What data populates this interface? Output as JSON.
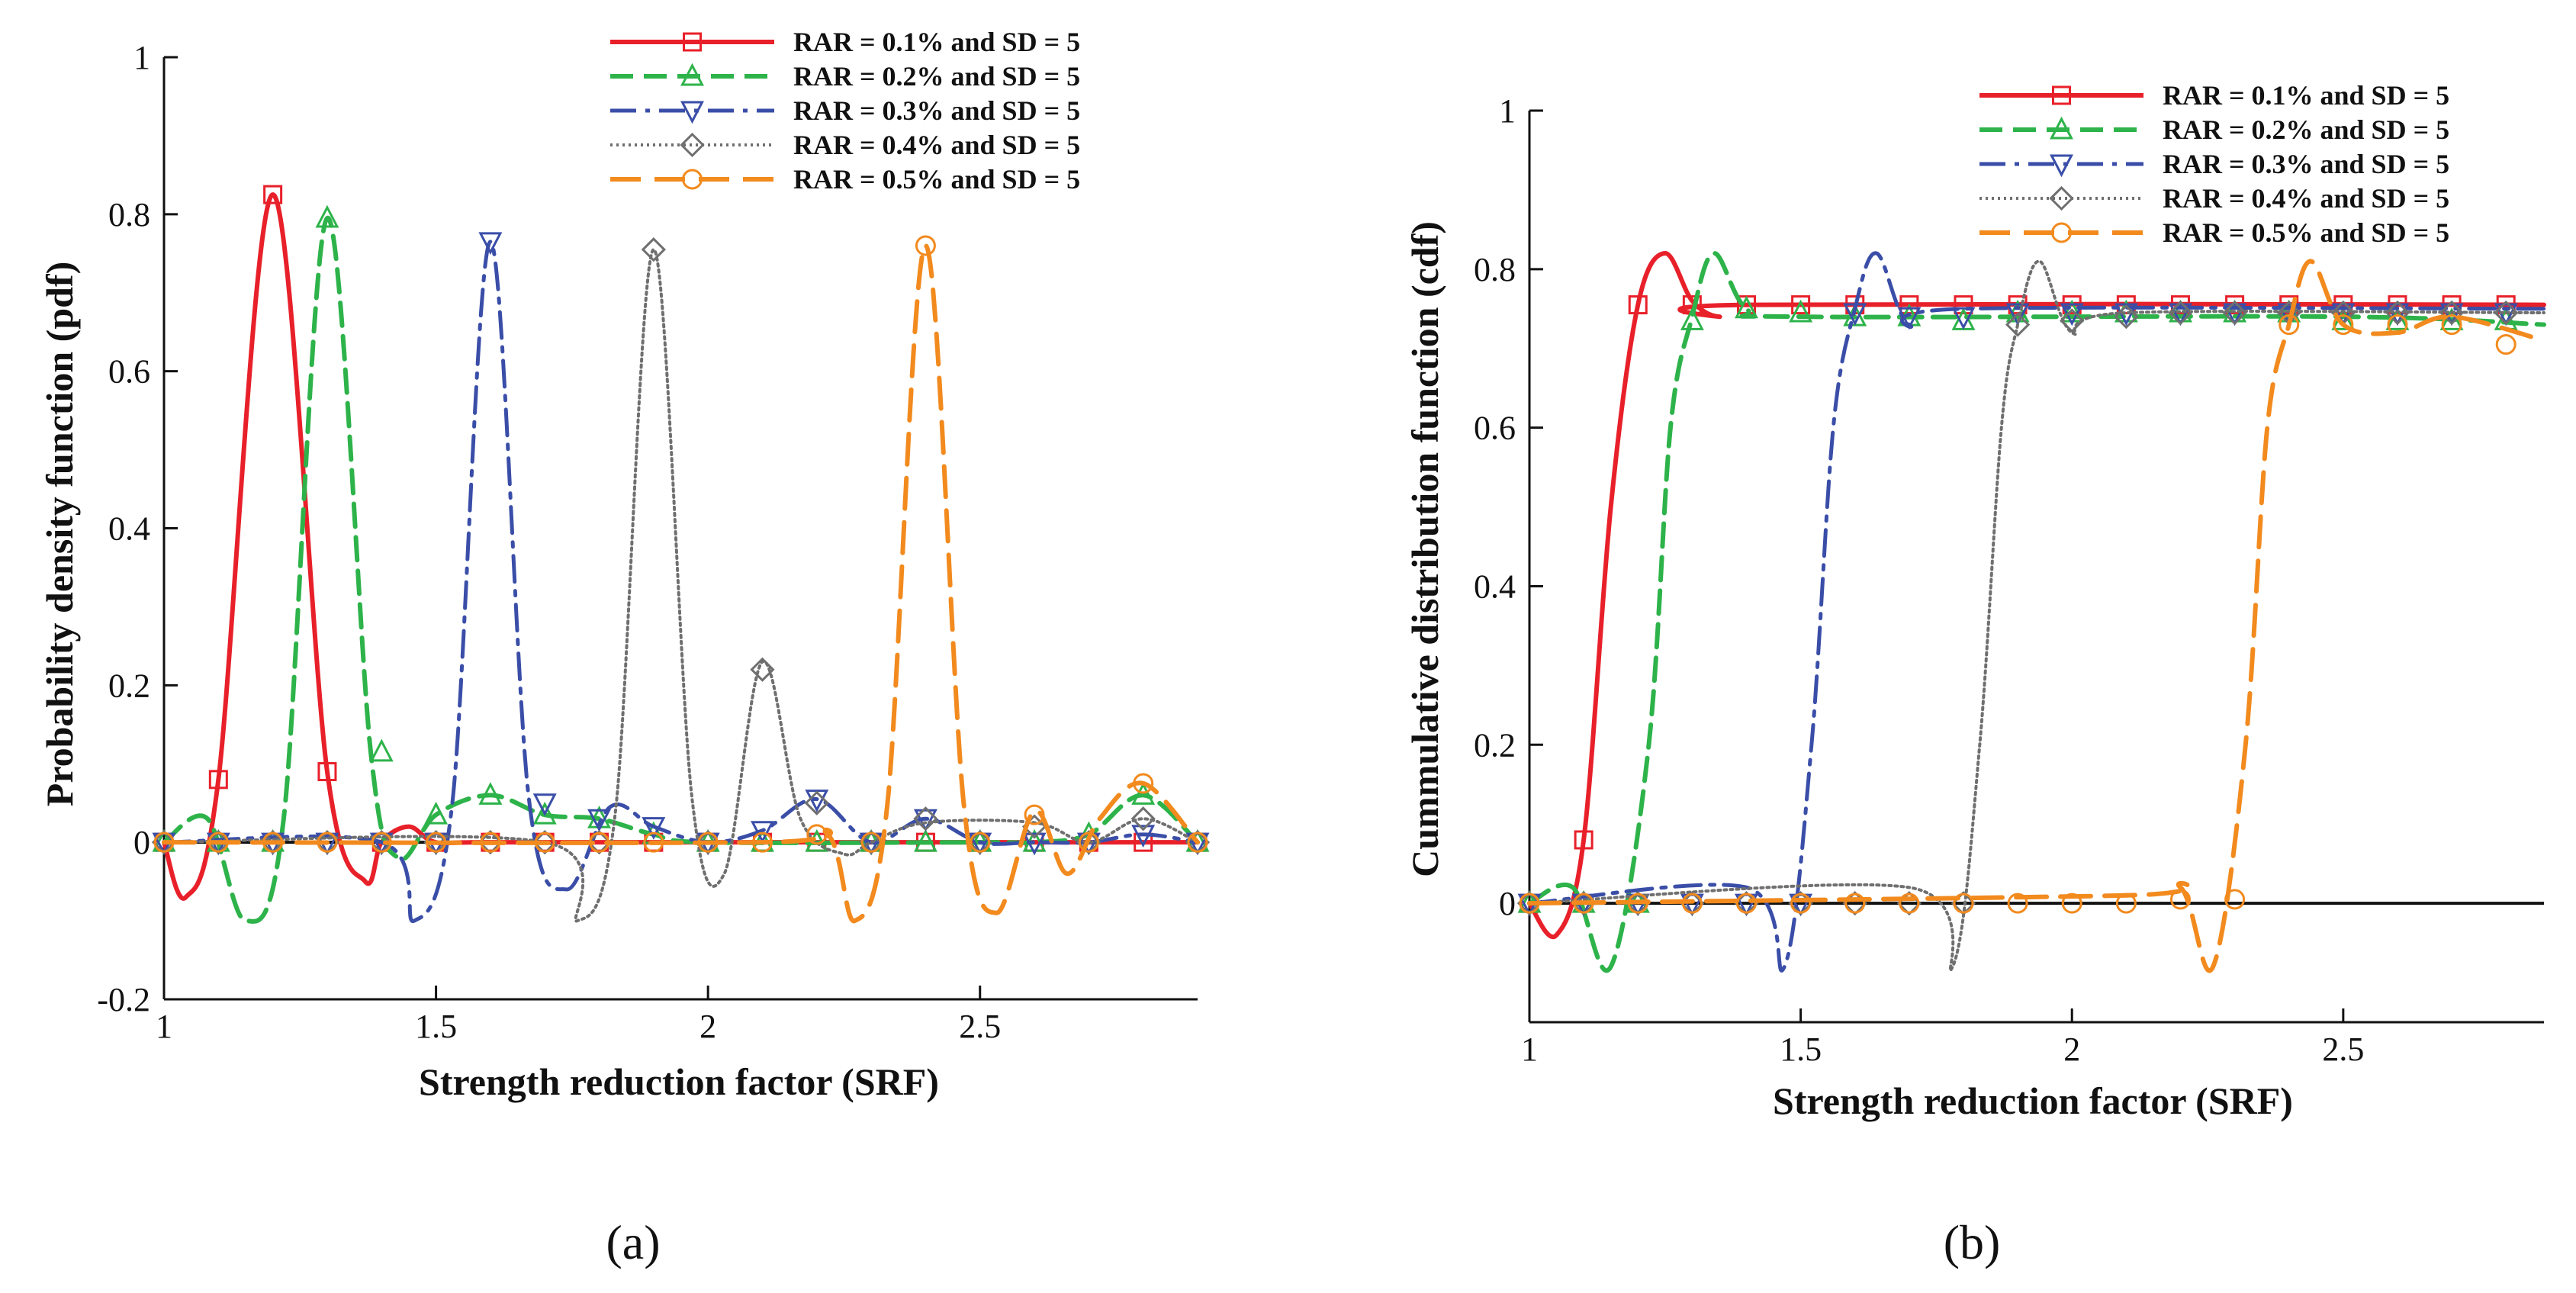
{
  "colors": {
    "s1": "#e8202a",
    "s2": "#2db34a",
    "s3": "#3a4ea8",
    "s4": "#6f6f6f",
    "s5": "#f28a1e"
  },
  "chart_data": [
    {
      "type": "line",
      "caption": "(a)",
      "xlabel": "Strength reduction factor (SRF)",
      "ylabel": "Probability density function (pdf)",
      "xlim": [
        1,
        2.9
      ],
      "ylim": [
        -0.2,
        1
      ],
      "xticks": [
        1,
        1.5,
        2,
        2.5
      ],
      "xtick_labels": [
        "1",
        "1.5",
        "2",
        "2.5"
      ],
      "yticks": [
        -0.2,
        0,
        0.2,
        0.4,
        0.6,
        0.8,
        1
      ],
      "ytick_labels": [
        "-0.2",
        "0",
        "0.2",
        "0.4",
        "0.6",
        "0.8",
        "1"
      ],
      "legend": "top-right",
      "series": [
        {
          "name": "RAR = 0.1% and SD = 5",
          "marker": "square",
          "x": [
            1.0,
            1.04,
            1.1,
            1.2,
            1.3,
            1.37,
            1.4,
            1.45,
            1.5,
            1.6,
            2.2,
            2.4,
            2.6,
            2.8,
            2.9
          ],
          "y": [
            0.0,
            -0.07,
            0.08,
            0.825,
            0.09,
            -0.05,
            0.0,
            0.02,
            0.0,
            0.0,
            0.0,
            0.0,
            0.0,
            0.0,
            0.0
          ],
          "mx": [
            1.0,
            1.1,
            1.2,
            1.3,
            1.4,
            1.5,
            1.6,
            1.7,
            1.8,
            1.9,
            2.0,
            2.1,
            2.2,
            2.3,
            2.4,
            2.5,
            2.6,
            2.7,
            2.8,
            2.9
          ],
          "my": [
            0.0,
            0.08,
            0.825,
            0.09,
            0.0,
            0.0,
            0.0,
            0.0,
            0.0,
            0.0,
            0.0,
            0.0,
            0.0,
            0.0,
            0.0,
            0.0,
            0.0,
            0.0,
            0.0,
            0.0
          ]
        },
        {
          "name": "RAR = 0.2% and SD = 5",
          "marker": "triangle-up",
          "x": [
            1.0,
            1.08,
            1.15,
            1.22,
            1.3,
            1.38,
            1.43,
            1.5,
            1.6,
            1.7,
            1.8,
            1.9,
            2.0,
            2.5,
            2.6,
            2.7,
            2.8,
            2.9
          ],
          "y": [
            0.0,
            0.03,
            -0.1,
            0.03,
            0.795,
            0.115,
            -0.02,
            0.035,
            0.06,
            0.035,
            0.03,
            0.01,
            0.0,
            0.0,
            0.0,
            0.01,
            0.06,
            0.0
          ],
          "mx": [
            1.0,
            1.1,
            1.2,
            1.3,
            1.4,
            1.5,
            1.6,
            1.7,
            1.8,
            1.9,
            2.0,
            2.1,
            2.2,
            2.3,
            2.4,
            2.5,
            2.6,
            2.7,
            2.8,
            2.9
          ],
          "my": [
            0.0,
            0.0,
            0.0,
            0.795,
            0.115,
            0.035,
            0.06,
            0.035,
            0.03,
            0.01,
            0.0,
            0.0,
            0.0,
            0.0,
            0.0,
            0.0,
            0.0,
            0.01,
            0.06,
            0.0
          ]
        },
        {
          "name": "RAR = 0.3% and SD = 5",
          "marker": "triangle-down",
          "x": [
            1.0,
            1.4,
            1.46,
            1.53,
            1.6,
            1.67,
            1.74,
            1.82,
            1.9,
            2.0,
            2.1,
            2.2,
            2.3,
            2.4,
            2.5,
            2.6,
            2.7,
            2.8,
            2.9
          ],
          "y": [
            0.0,
            0.0,
            -0.1,
            0.05,
            0.765,
            0.06,
            -0.06,
            0.045,
            0.02,
            0.0,
            0.015,
            0.055,
            0.0,
            0.03,
            0.0,
            0.0,
            0.0,
            0.01,
            0.0
          ],
          "mx": [
            1.0,
            1.1,
            1.2,
            1.3,
            1.4,
            1.5,
            1.6,
            1.7,
            1.8,
            1.9,
            2.0,
            2.1,
            2.2,
            2.3,
            2.4,
            2.5,
            2.6,
            2.7,
            2.8,
            2.9
          ],
          "my": [
            0.0,
            0.0,
            0.0,
            0.0,
            0.0,
            0.0,
            0.765,
            0.05,
            0.03,
            0.02,
            0.0,
            0.015,
            0.055,
            0.0,
            0.03,
            0.0,
            0.0,
            0.0,
            0.01,
            0.0
          ]
        },
        {
          "name": "RAR = 0.4% and SD = 5",
          "marker": "diamond",
          "x": [
            1.0,
            1.7,
            1.76,
            1.83,
            1.9,
            1.97,
            2.03,
            2.1,
            2.17,
            2.25,
            2.3,
            2.4,
            2.6,
            2.7,
            2.8,
            2.9
          ],
          "y": [
            0.0,
            0.0,
            -0.1,
            0.04,
            0.755,
            0.06,
            -0.04,
            0.23,
            0.03,
            -0.015,
            0.0,
            0.025,
            0.025,
            0.0,
            0.03,
            0.0
          ],
          "mx": [
            1.0,
            1.1,
            1.2,
            1.3,
            1.4,
            1.5,
            1.6,
            1.7,
            1.8,
            1.9,
            2.0,
            2.1,
            2.2,
            2.3,
            2.4,
            2.5,
            2.6,
            2.7,
            2.8,
            2.9
          ],
          "my": [
            0.0,
            0.0,
            0.0,
            0.0,
            0.0,
            0.0,
            0.0,
            0.0,
            0.0,
            0.755,
            0.0,
            0.22,
            0.05,
            0.0,
            0.03,
            0.0,
            0.02,
            0.0,
            0.03,
            0.0
          ]
        },
        {
          "name": "RAR = 0.5% and SD = 5",
          "marker": "circle",
          "x": [
            1.0,
            2.1,
            2.22,
            2.27,
            2.33,
            2.4,
            2.47,
            2.53,
            2.6,
            2.66,
            2.72,
            2.8,
            2.9
          ],
          "y": [
            0.0,
            0.0,
            0.01,
            -0.1,
            0.05,
            0.76,
            0.05,
            -0.09,
            0.04,
            -0.04,
            0.03,
            0.075,
            0.0
          ],
          "mx": [
            1.0,
            1.1,
            1.2,
            1.3,
            1.4,
            1.5,
            1.6,
            1.7,
            1.8,
            1.9,
            2.0,
            2.1,
            2.2,
            2.3,
            2.4,
            2.5,
            2.6,
            2.7,
            2.8,
            2.9
          ],
          "my": [
            0.0,
            0.0,
            0.0,
            0.0,
            0.0,
            0.0,
            0.0,
            0.0,
            0.0,
            0.0,
            0.0,
            0.0,
            0.01,
            0.0,
            0.76,
            0.0,
            0.035,
            0.0,
            0.075,
            0.0
          ]
        }
      ]
    },
    {
      "type": "line",
      "caption": "(b)",
      "xlabel": "Strength reduction factor (SRF)",
      "ylabel": "Cummulative distribution function (cdf)",
      "xlim": [
        1,
        2.87
      ],
      "ylim": [
        -0.15,
        1
      ],
      "xticks": [
        1,
        1.5,
        2,
        2.5
      ],
      "xtick_labels": [
        "1",
        "1.5",
        "2",
        "2.5"
      ],
      "yticks": [
        0,
        0.2,
        0.4,
        0.6,
        0.8,
        1
      ],
      "ytick_labels": [
        "0",
        "0.2",
        "0.4",
        "0.6",
        "0.8",
        "1"
      ],
      "legend": "top-right",
      "series": [
        {
          "name": "RAR = 0.1% and SD = 5",
          "marker": "square",
          "x": [
            1.0,
            1.05,
            1.1,
            1.15,
            1.2,
            1.25,
            1.3,
            1.35,
            1.4,
            2.87
          ],
          "y": [
            0.0,
            -0.04,
            0.08,
            0.5,
            0.755,
            0.82,
            0.76,
            0.74,
            0.755,
            0.755
          ],
          "mx": [
            1.0,
            1.1,
            1.2,
            1.3,
            1.4,
            1.5,
            1.6,
            1.7,
            1.8,
            1.9,
            2.0,
            2.1,
            2.2,
            2.3,
            2.4,
            2.5,
            2.6,
            2.7,
            2.8
          ],
          "my": [
            0.0,
            0.08,
            0.755,
            0.755,
            0.755,
            0.755,
            0.755,
            0.755,
            0.755,
            0.755,
            0.755,
            0.755,
            0.755,
            0.755,
            0.755,
            0.755,
            0.755,
            0.755,
            0.755
          ]
        },
        {
          "name": "RAR = 0.2% and SD = 5",
          "marker": "triangle-up",
          "x": [
            1.0,
            1.08,
            1.15,
            1.22,
            1.26,
            1.3,
            1.34,
            1.4,
            1.5,
            2.5,
            2.87
          ],
          "y": [
            0.0,
            0.02,
            -0.08,
            0.2,
            0.6,
            0.74,
            0.82,
            0.75,
            0.74,
            0.74,
            0.73
          ],
          "mx": [
            1.0,
            1.1,
            1.2,
            1.3,
            1.4,
            1.5,
            1.6,
            1.7,
            1.8,
            1.9,
            2.0,
            2.1,
            2.2,
            2.3,
            2.4,
            2.5,
            2.6,
            2.7,
            2.8
          ],
          "my": [
            0.0,
            0.0,
            0.0,
            0.735,
            0.75,
            0.745,
            0.74,
            0.74,
            0.735,
            0.745,
            0.745,
            0.745,
            0.745,
            0.745,
            0.745,
            0.735,
            0.735,
            0.735,
            0.735
          ]
        },
        {
          "name": "RAR = 0.3% and SD = 5",
          "marker": "triangle-down",
          "x": [
            1.0,
            1.4,
            1.47,
            1.52,
            1.56,
            1.6,
            1.64,
            1.7,
            1.8,
            2.87
          ],
          "y": [
            0.0,
            0.02,
            -0.08,
            0.2,
            0.6,
            0.75,
            0.82,
            0.73,
            0.75,
            0.75
          ],
          "mx": [
            1.0,
            1.1,
            1.2,
            1.3,
            1.4,
            1.5,
            1.6,
            1.7,
            1.8,
            1.9,
            2.0,
            2.1,
            2.2,
            2.3,
            2.4,
            2.5,
            2.6,
            2.7,
            2.8
          ],
          "my": [
            0.0,
            0.0,
            0.0,
            0.0,
            0.0,
            0.0,
            0.745,
            0.74,
            0.74,
            0.745,
            0.745,
            0.745,
            0.745,
            0.745,
            0.745,
            0.745,
            0.745,
            0.745,
            0.745
          ]
        },
        {
          "name": "RAR = 0.4% and SD = 5",
          "marker": "diamond",
          "x": [
            1.0,
            1.7,
            1.78,
            1.83,
            1.87,
            1.9,
            1.94,
            2.0,
            2.1,
            2.87
          ],
          "y": [
            0.0,
            0.02,
            -0.08,
            0.2,
            0.6,
            0.73,
            0.81,
            0.72,
            0.745,
            0.745
          ],
          "mx": [
            1.0,
            1.1,
            1.2,
            1.3,
            1.4,
            1.5,
            1.6,
            1.7,
            1.8,
            1.9,
            2.0,
            2.1,
            2.2,
            2.3,
            2.4,
            2.5,
            2.6,
            2.7,
            2.8
          ],
          "my": [
            0.0,
            0.0,
            0.0,
            0.0,
            0.0,
            0.0,
            0.0,
            0.0,
            0.0,
            0.73,
            0.735,
            0.74,
            0.745,
            0.745,
            0.745,
            0.745,
            0.745,
            0.745,
            0.745
          ]
        },
        {
          "name": "RAR = 0.5% and SD = 5",
          "marker": "circle",
          "x": [
            1.0,
            2.1,
            2.2,
            2.26,
            2.32,
            2.36,
            2.4,
            2.44,
            2.5,
            2.6,
            2.7,
            2.87
          ],
          "y": [
            0.0,
            0.01,
            0.02,
            -0.08,
            0.2,
            0.6,
            0.73,
            0.81,
            0.73,
            0.72,
            0.74,
            0.71
          ],
          "mx": [
            1.0,
            1.1,
            1.2,
            1.3,
            1.4,
            1.5,
            1.6,
            1.7,
            1.8,
            1.9,
            2.0,
            2.1,
            2.2,
            2.3,
            2.4,
            2.5,
            2.6,
            2.7,
            2.8
          ],
          "my": [
            0.0,
            0.0,
            0.0,
            0.0,
            0.0,
            0.0,
            0.0,
            0.0,
            0.0,
            0.0,
            0.0,
            0.0,
            0.005,
            0.005,
            0.73,
            0.73,
            0.73,
            0.73,
            0.705
          ]
        }
      ]
    }
  ]
}
